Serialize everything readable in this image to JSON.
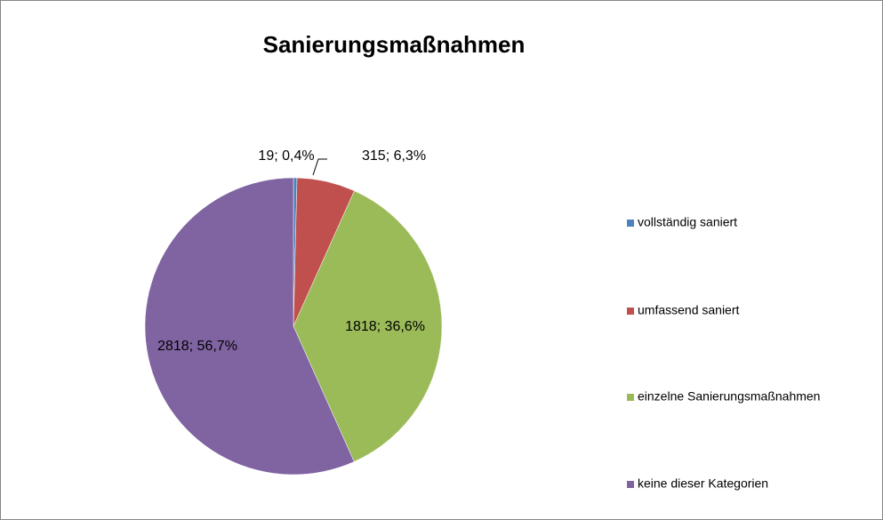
{
  "chart_data": {
    "type": "pie",
    "title": "Sanierungsmaßnahmen",
    "categories": [
      "vollständig saniert",
      "umfassend saniert",
      "einzelne Sanierungsmaßnahmen",
      "keine dieser Kategorien"
    ],
    "values": [
      19,
      315,
      1818,
      2818
    ],
    "value_labels": [
      "19; 0,4%",
      "315; 6,3%",
      "1818; 36,6%",
      "2818; 56,7%"
    ],
    "colors": [
      "#4f81bd",
      "#c0504d",
      "#9bbb59",
      "#8064a2"
    ],
    "legend": "right"
  }
}
